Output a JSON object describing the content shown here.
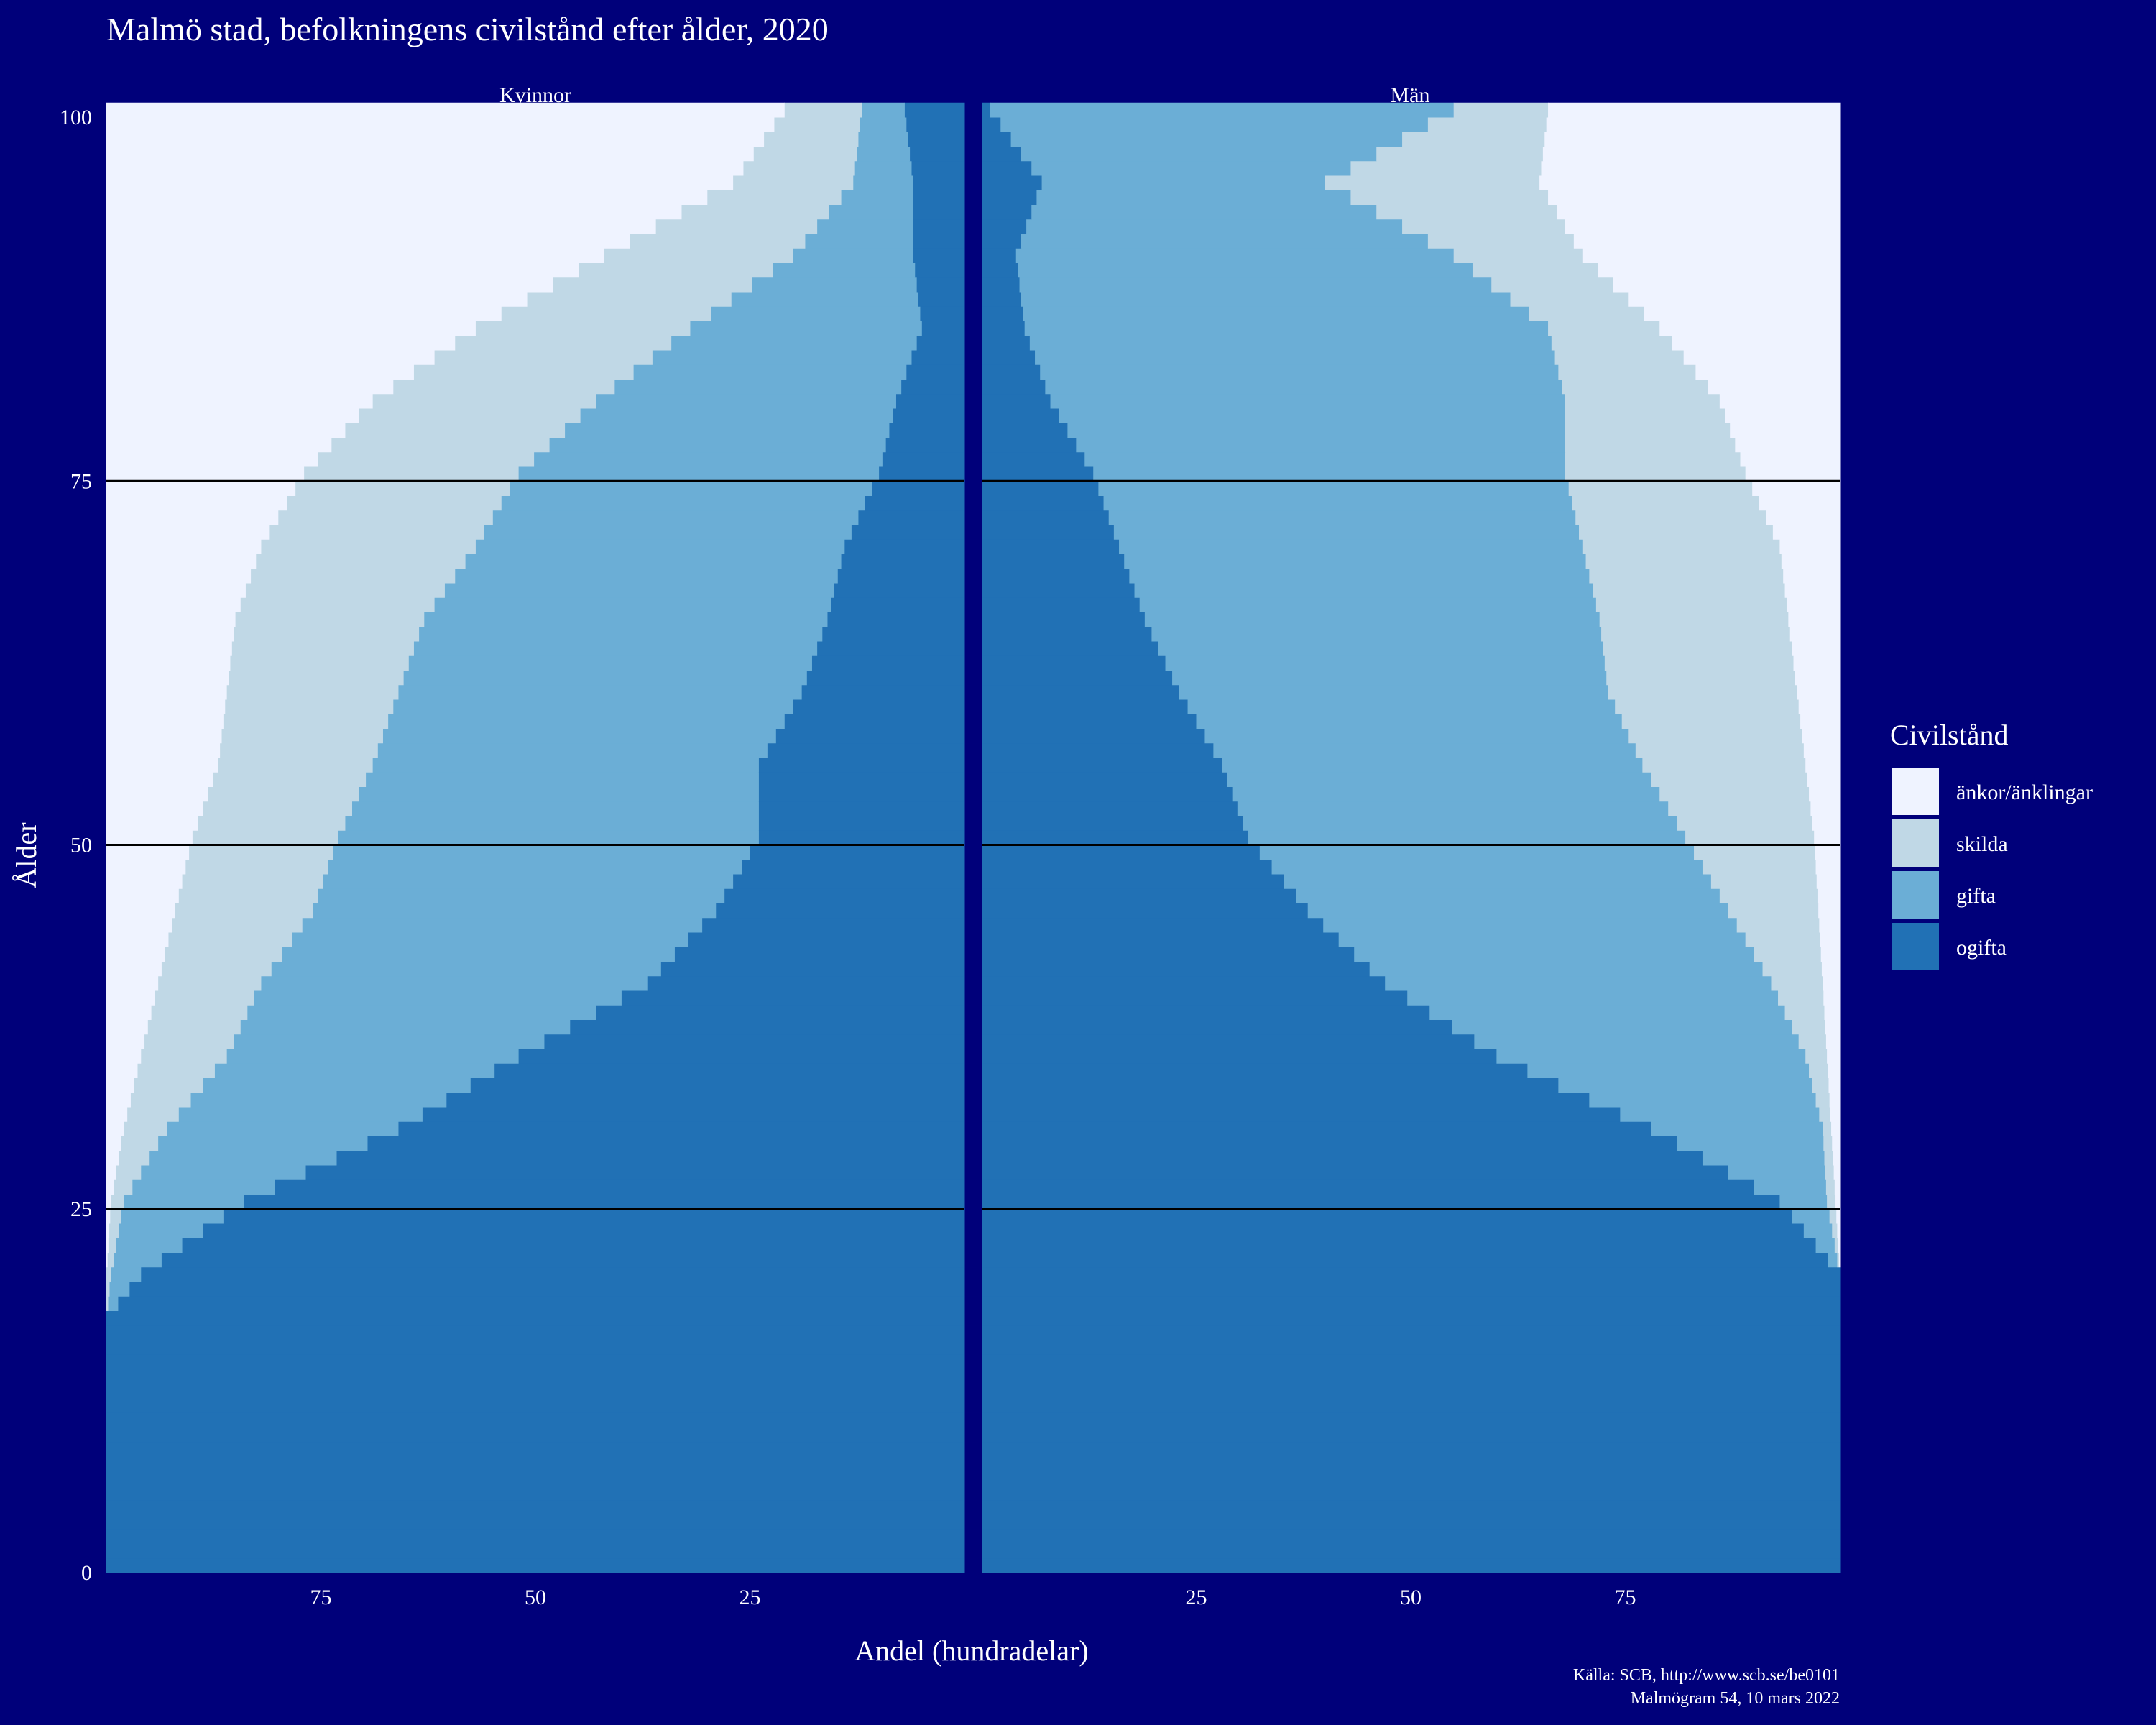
{
  "chart_data": {
    "type": "bar",
    "title": "Malmö stad, befolkningens civilstånd efter ålder, 2020",
    "xlabel": "Andel (hundradelar)",
    "ylabel": "Ålder",
    "facets": [
      "Kvinnor",
      "Män"
    ],
    "x_ticks": {
      "Kvinnor": [
        "75",
        "50",
        "25"
      ],
      "Män": [
        "25",
        "50",
        "75"
      ]
    },
    "y_ticks": [
      "0",
      "25",
      "50",
      "75",
      "100"
    ],
    "ylim": [
      0,
      100
    ],
    "xlim": [
      0,
      100
    ],
    "reference_lines_y": [
      25,
      50,
      75
    ],
    "legend": {
      "title": "Civilstånd",
      "position": "right",
      "entries": [
        "änkor/änklingar",
        "skilda",
        "gifta",
        "ogifta"
      ]
    },
    "colors": {
      "ogifta": "#2171b5",
      "gifta": "#6baed6",
      "skilda": "#c0d8e6",
      "änkor/änklingar": "#eff3ff"
    },
    "series_description": "Cumulative share (percent) per age; values are upper boundaries for ogifta, ogifta+gifta, ogifta+gifta+skilda",
    "knots": {
      "age": [
        0,
        17,
        20,
        25,
        30,
        35,
        40,
        45,
        50,
        55,
        60,
        65,
        70,
        75,
        80,
        85,
        90,
        95,
        100
      ],
      "Kvinnor": {
        "ogifta": [
          100,
          100,
          96,
          84,
          66,
          52,
          37,
          29,
          24,
          24,
          19,
          16,
          14,
          10,
          8,
          5,
          6,
          6,
          7
        ],
        "ogifta_gifta": [
          100,
          100,
          99.5,
          98,
          93,
          86,
          82,
          76,
          73,
          69,
          66,
          63,
          57,
          52,
          43,
          32,
          20,
          13,
          12
        ],
        "upto_skilda": [
          100,
          100,
          100,
          99.5,
          98,
          96,
          94,
          92,
          90,
          87,
          86,
          85,
          82,
          77,
          69,
          57,
          42,
          27,
          21
        ]
      },
      "Män": {
        "ogifta": [
          100,
          100,
          100,
          93,
          78,
          60,
          47,
          38,
          31,
          28,
          23,
          19,
          16,
          13,
          8,
          5,
          4,
          7,
          1
        ],
        "ogifta_gifta": [
          100,
          100,
          100,
          98.5,
          98,
          96,
          92,
          87,
          82,
          77,
          73,
          72,
          70,
          68,
          68,
          66,
          55,
          40,
          55
        ],
        "upto_skilda": [
          100,
          100,
          100,
          99.5,
          99,
          98.5,
          98,
          97.5,
          97,
          96,
          95,
          94,
          93,
          89,
          86,
          79,
          70,
          65,
          66
        ]
      }
    }
  },
  "caption": {
    "line1": "Källa: SCB, http://www.scb.se/be0101",
    "line2": "Malmögram 54, 10 mars 2022"
  }
}
